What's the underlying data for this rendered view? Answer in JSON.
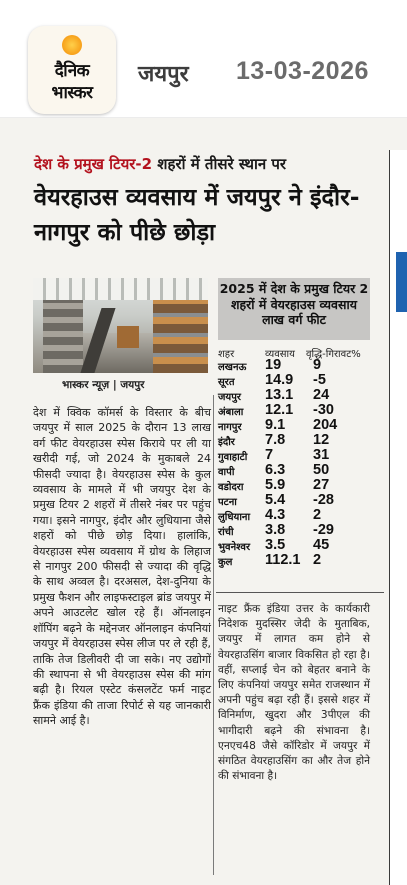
{
  "header": {
    "logo_line1": "दैनिक",
    "logo_line2": "भास्कर",
    "city": "जयपुर",
    "date": "13-03-2026",
    "colors": {
      "sun": "#f7a01a",
      "logo_bg": "#fbf7ee"
    }
  },
  "article": {
    "kicker_red": "देश के प्रमुख टियर-2",
    "kicker_black": " शहरों में तीसरे स्थान पर",
    "headline": "वेयरहाउस व्यवसाय में जयपुर ने इंदौर-नागपुर को पीछे छोड़ा",
    "credit": "भास्कर न्यूज़ | जयपुर",
    "body": "देश में क्विक कॉमर्स के विस्तार के बीच जयपुर में साल 2025 के दौरान 13 लाख वर्ग फीट वेयरहाउस स्पेस किराये पर ली या खरीदी गई, जो 2024 के मुकाबले 24 फीसदी ज्यादा है। वेयरहाउस स्पेस के कुल व्यवसाय के मामले में भी जयपुर देश के प्रमुख टियर 2 शहरों में तीसरे नंबर पर पहुंच गया। इसने नागपुर, इंदौर और लुधियाना जैसे शहरों को पीछे छोड़ दिया। हालांकि, वेयरहाउस स्पेस व्यवसाय में ग्रोथ के लिहाज से नागपुर 200 फीसदी से ज्यादा की वृद्धि के साथ अव्वल है। दरअसल, देश-दुनिया के प्रमुख फैशन और लाइफस्टाइल ब्रांड जयपुर में अपने आउटलेट खोल रहे हैं। ऑनलाइन शॉपिंग बढ़ने के मद्देनजर ऑनलाइन कंपनियां जयपुर में वेयरहाउस स्पेस लीज पर ले रही हैं, ताकि तेज डिलीवरी दी जा सके। नए उद्योगों की स्थापना से भी वेयरहाउस स्पेस की मांग बढ़ी है। रियल एस्टेट कंसलटेंट फर्म नाइट फ्रैंक इंडिया की ताजा रिपोर्ट से यह जानकारी सामने आई है।",
    "side_text": "नाइट फ्रैंक इंडिया उत्तर के कार्यकारी निदेशक मुदस्सिर जेदी के मुताबिक, जयपुर में लागत कम होने से वेयरहाउसिंग बाजार विकसित हो रहा है। वहीं, सप्लाई चेन को बेहतर बनाने के लिए कंपनियां जयपुर समेत राजस्थान में अपनी पहुंच बढ़ा रही हैं। इससे शहर में विनिर्माण, खुदरा और 3पीएल की भागीदारी बढ़ने की संभावना है। एनएच48 जैसे कॉरिडोर में जयपुर में संगठित वेयरहाउसिंग का और तेज होने की संभावना है।",
    "colors": {
      "kicker": "#b3121e",
      "table_header": "#c7c6c4"
    }
  },
  "table": {
    "title": "2025 में देश के प्रमुख टियर 2 शहरों में वेयरहाउस व्यवसाय लाख वर्ग फीट",
    "headers": [
      "शहर",
      "व्यवसाय",
      "वृद्धि-गिरावट%"
    ],
    "rows": [
      {
        "city": "लखनऊ",
        "volume": "19",
        "growth": "9"
      },
      {
        "city": "सूरत",
        "volume": "14.9",
        "growth": "-5"
      },
      {
        "city": "जयपुर",
        "volume": "13.1",
        "growth": "24"
      },
      {
        "city": "अंबाला",
        "volume": "12.1",
        "growth": "-30"
      },
      {
        "city": "नागपुर",
        "volume": "9.1",
        "growth": "204"
      },
      {
        "city": "इंदौर",
        "volume": "7.8",
        "growth": "12"
      },
      {
        "city": "गुवाहाटी",
        "volume": "7",
        "growth": "31"
      },
      {
        "city": "वापी",
        "volume": "6.3",
        "growth": "50"
      },
      {
        "city": "वडोदरा",
        "volume": "5.9",
        "growth": "27"
      },
      {
        "city": "पटना",
        "volume": "5.4",
        "growth": "-28"
      },
      {
        "city": "लुधियाना",
        "volume": "4.3",
        "growth": "2"
      },
      {
        "city": "रांची",
        "volume": "3.8",
        "growth": "-29"
      },
      {
        "city": "भुवनेश्वर",
        "volume": "3.5",
        "growth": "45"
      },
      {
        "city": "कुल",
        "volume": "112.1",
        "growth": "2"
      }
    ]
  }
}
